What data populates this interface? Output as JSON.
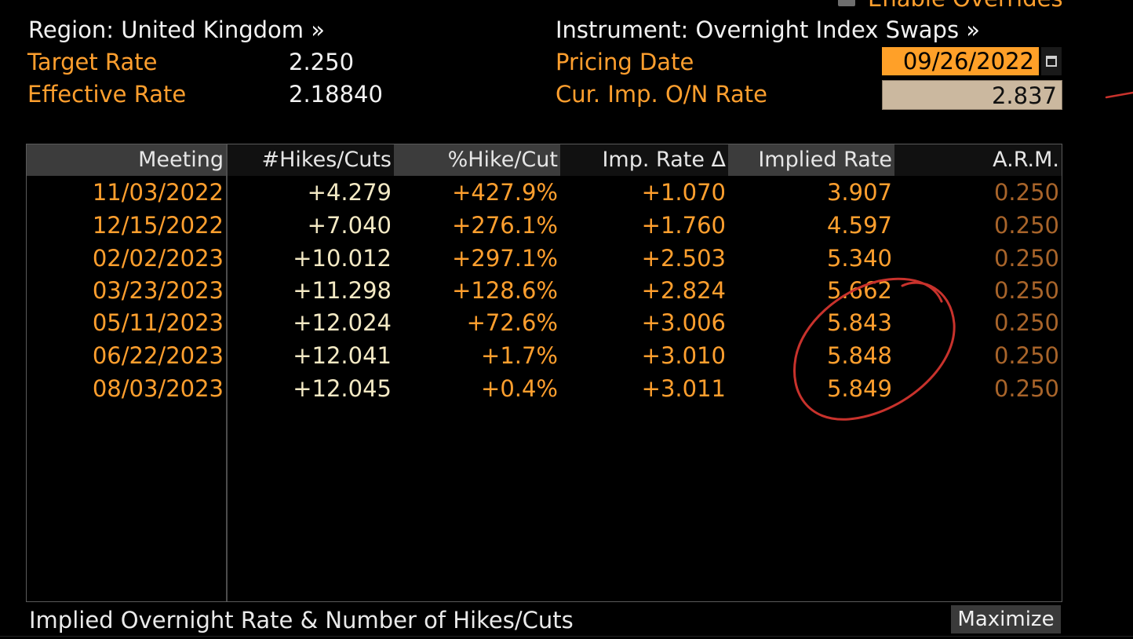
{
  "top": {
    "enable_overrides_label": "Enable Overrides",
    "region": "Region: United Kingdom »",
    "instrument": "Instrument: Overnight Index Swaps »"
  },
  "rates": {
    "target_rate_label": "Target Rate",
    "target_rate_value": "2.250",
    "effective_rate_label": "Effective Rate",
    "effective_rate_value": "2.18840",
    "pricing_date_label": "Pricing Date",
    "pricing_date_value": "09/26/2022",
    "cur_imp_label": "Cur. Imp. O/N Rate",
    "cur_imp_value": "2.837"
  },
  "table": {
    "headers": [
      "Meeting",
      "#Hikes/Cuts",
      "%Hike/Cut",
      "Imp. Rate Δ",
      "Implied Rate",
      "A.R.M."
    ],
    "rows": [
      {
        "meeting": "11/03/2022",
        "hikes": "+4.279",
        "pct": "+427.9%",
        "delta": "+1.070",
        "implied": "3.907",
        "arm": "0.250"
      },
      {
        "meeting": "12/15/2022",
        "hikes": "+7.040",
        "pct": "+276.1%",
        "delta": "+1.760",
        "implied": "4.597",
        "arm": "0.250"
      },
      {
        "meeting": "02/02/2023",
        "hikes": "+10.012",
        "pct": "+297.1%",
        "delta": "+2.503",
        "implied": "5.340",
        "arm": "0.250"
      },
      {
        "meeting": "03/23/2023",
        "hikes": "+11.298",
        "pct": "+128.6%",
        "delta": "+2.824",
        "implied": "5.662",
        "arm": "0.250"
      },
      {
        "meeting": "05/11/2023",
        "hikes": "+12.024",
        "pct": "+72.6%",
        "delta": "+3.006",
        "implied": "5.843",
        "arm": "0.250"
      },
      {
        "meeting": "06/22/2023",
        "hikes": "+12.041",
        "pct": "+1.7%",
        "delta": "+3.010",
        "implied": "5.848",
        "arm": "0.250"
      },
      {
        "meeting": "08/03/2023",
        "hikes": "+12.045",
        "pct": "+0.4%",
        "delta": "+3.011",
        "implied": "5.849",
        "arm": "0.250"
      }
    ]
  },
  "footer": {
    "title": "Implied Overnight Rate & Number of Hikes/Cuts",
    "maximize_label": "Maximize"
  },
  "colors": {
    "label_orange": "#ff9f2e",
    "value_cream": "#f3e9c4",
    "arm_dim": "#a8642a",
    "date_box": "#ffa028",
    "rate_box": "#cbb89f",
    "annotation_red": "#c8322c"
  },
  "annotation": {
    "circled_rows": [
      "5.662",
      "5.843",
      "5.848",
      "5.849"
    ]
  }
}
